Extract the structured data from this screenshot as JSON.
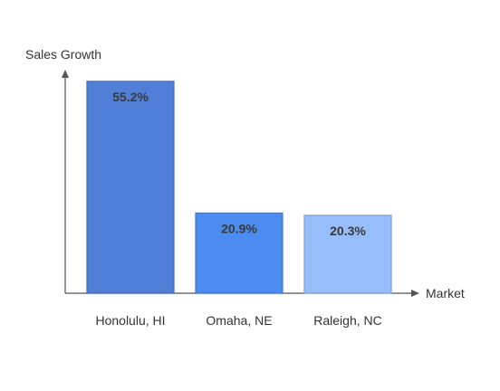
{
  "chart_data": {
    "type": "bar",
    "title": "",
    "xlabel": "Market",
    "ylabel": "Sales Growth",
    "categories": [
      "Honolulu, HI",
      "Omaha, NE",
      "Raleigh, NC"
    ],
    "values": [
      55.2,
      20.9,
      20.3
    ],
    "value_labels": [
      "55.2%",
      "20.9%",
      "20.3%"
    ],
    "ylim": [
      0,
      58
    ],
    "grid": false,
    "legend": "none",
    "colors": [
      "#4f7fd6",
      "#4c8cf0",
      "#97bdfb"
    ],
    "stroke_colors": [
      "#3f6cb8",
      "#3f77d0",
      "#7f9fd8"
    ]
  }
}
